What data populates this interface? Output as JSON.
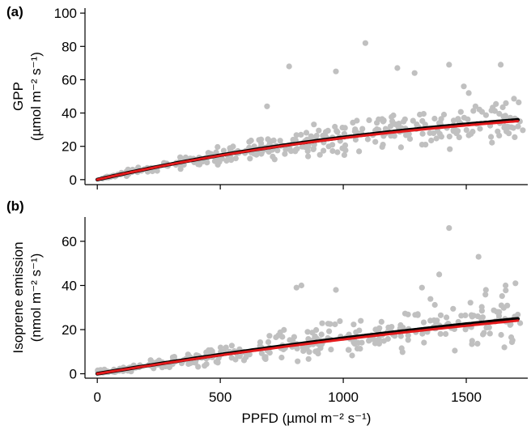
{
  "chart_data": [
    {
      "type": "scatter",
      "panel_label": "(a)",
      "ylabel_line1": "GPP",
      "ylabel_line2": "(µmol m⁻² s⁻¹)",
      "xlabel": "",
      "xlim": [
        -50,
        1750
      ],
      "ylim": [
        -3,
        103
      ],
      "yticks": [
        0,
        20,
        40,
        60,
        80,
        100
      ],
      "xticks": [
        0,
        500,
        1000,
        1500
      ],
      "fit_black": {
        "amax": 54.9,
        "k": 0.00062
      },
      "fit_red": {
        "amax": 52.8,
        "k": 0.00064
      },
      "points_gray": {
        "n": 360,
        "seed": 11,
        "amax": 54.9,
        "k": 0.00062,
        "noise": 0.3
      },
      "outliers": [
        [
          1090,
          82
        ],
        [
          1430,
          69
        ],
        [
          780,
          68
        ],
        [
          1640,
          69
        ],
        [
          1220,
          67
        ],
        [
          1510,
          52
        ],
        [
          970,
          65
        ],
        [
          1290,
          64
        ],
        [
          690,
          44
        ],
        [
          1490,
          56
        ]
      ]
    },
    {
      "type": "scatter",
      "panel_label": "(b)",
      "ylabel_line1": "Isoprene emission",
      "ylabel_line2": "(nmol m⁻² s⁻¹)",
      "xlabel": "PPFD (µmol m⁻² s⁻¹)",
      "xlim": [
        -50,
        1750
      ],
      "ylim": [
        -2,
        71
      ],
      "yticks": [
        0,
        20,
        40,
        60
      ],
      "xticks": [
        0,
        500,
        1000,
        1500
      ],
      "xtick_labels": [
        "0",
        "500",
        "1000",
        "1500"
      ],
      "fit_black": {
        "amax": 62.0,
        "k": 0.0003
      },
      "fit_red": {
        "amax": 60.0,
        "k": 0.0003
      },
      "points_gray": {
        "n": 340,
        "seed": 23,
        "amax": 62.0,
        "k": 0.0003,
        "noise": 0.45
      },
      "outliers": [
        [
          1430,
          66
        ],
        [
          1550,
          53
        ],
        [
          830,
          40
        ],
        [
          1390,
          45
        ],
        [
          810,
          39
        ],
        [
          1580,
          38
        ],
        [
          1700,
          41
        ],
        [
          970,
          38
        ],
        [
          1660,
          40
        ],
        [
          1320,
          39
        ]
      ]
    }
  ],
  "colors": {
    "points": "#c0c0c0",
    "fit_main": "#000000",
    "fit_alt": "#e41a1c",
    "axis": "#000000"
  }
}
